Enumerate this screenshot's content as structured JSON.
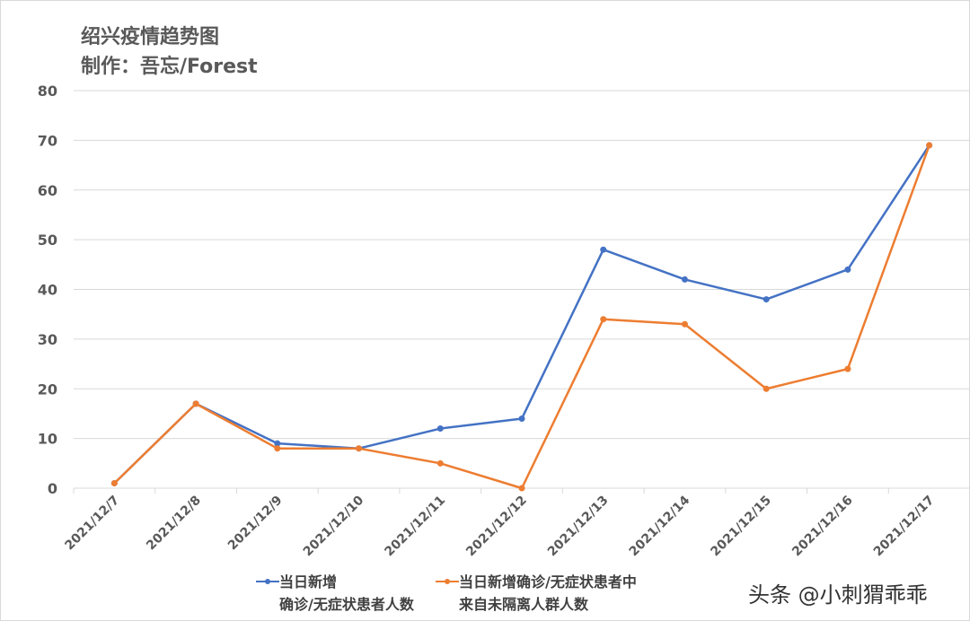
{
  "title_line1": "绍兴疫情趋势图",
  "title_line2": "制作：吾忘/Forest",
  "watermark": "头条 @小刺猬乖乖",
  "chart_data": {
    "type": "line",
    "categories": [
      "2021/12/7",
      "2021/12/8",
      "2021/12/9",
      "2021/12/10",
      "2021/12/11",
      "2021/12/12",
      "2021/12/13",
      "2021/12/14",
      "2021/12/15",
      "2021/12/16",
      "2021/12/17"
    ],
    "series": [
      {
        "name": "当日新增确诊/无症状患者人数",
        "name_lines": [
          "当日新增",
          "确诊/无症状患者人数"
        ],
        "color": "#4472c4",
        "values": [
          1,
          17,
          9,
          8,
          12,
          14,
          48,
          42,
          38,
          44,
          69
        ]
      },
      {
        "name": "当日新增确诊/无症状患者中来自未隔离人群人数",
        "name_lines": [
          "当日新增确诊/无症状患者中",
          "来自未隔离人群人数"
        ],
        "color": "#ed7d31",
        "values": [
          1,
          17,
          8,
          8,
          5,
          0,
          34,
          33,
          20,
          24,
          69
        ]
      }
    ],
    "ylim": [
      0,
      80
    ],
    "yticks": [
      "0",
      "10",
      "20",
      "30",
      "40",
      "50",
      "60",
      "70",
      "80"
    ],
    "grid": true,
    "legend_position": "bottom"
  }
}
